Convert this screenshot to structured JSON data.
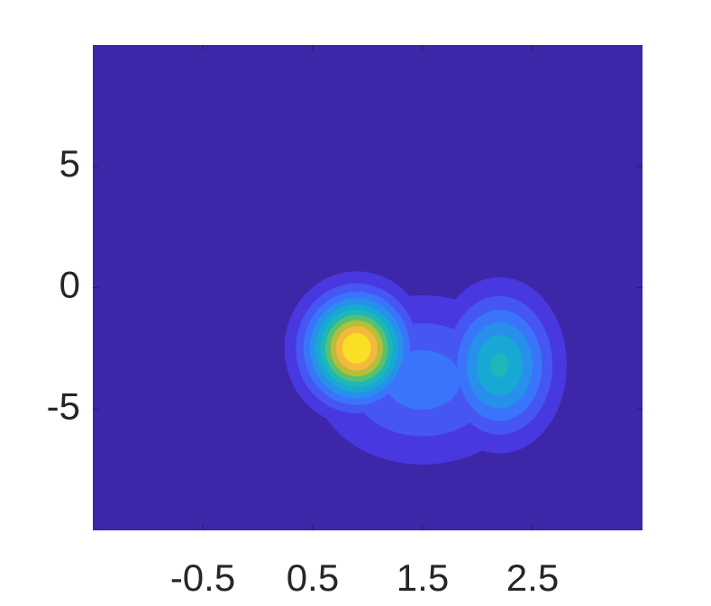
{
  "chart_data": {
    "type": "contour",
    "xlim": [
      -1.5,
      3.5
    ],
    "ylim": [
      -10,
      10
    ],
    "xticks": [
      -0.5,
      0.5,
      1.5,
      2.5
    ],
    "yticks": [
      -5,
      0,
      5
    ],
    "background": "#3e26a8",
    "levels": [
      1,
      2,
      3,
      4,
      5,
      6,
      7,
      8,
      9,
      10
    ],
    "colors": [
      "#4838e0",
      "#4656f2",
      "#3a74fa",
      "#2790eb",
      "#17a8d4",
      "#1fb7b6",
      "#58c170",
      "#b6be3a",
      "#f3b93c",
      "#f9df26"
    ],
    "peaks": [
      {
        "x": 1.5,
        "y": -3.8,
        "amplitude": 3.5,
        "sx": 0.62,
        "sy": 2.2
      },
      {
        "x": 2.2,
        "y": -3.2,
        "amplitude": 6.2,
        "sx": 0.32,
        "sy": 1.9
      },
      {
        "x": 0.9,
        "y": -2.5,
        "amplitude": 11,
        "sx": 0.3,
        "sy": 1.45
      }
    ]
  }
}
